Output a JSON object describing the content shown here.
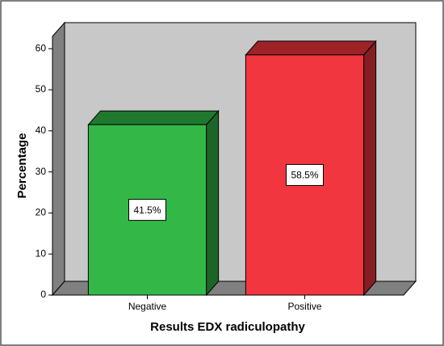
{
  "chart_data": {
    "type": "bar3d",
    "x_label": "Results EDX radiculopathy",
    "y_label": "Percentage",
    "categories": [
      "Negative",
      "Positive"
    ],
    "values": [
      41.5,
      58.5
    ],
    "value_labels": [
      "41.5%",
      "58.5%"
    ],
    "colors": [
      "#33b848",
      "#f2363f"
    ],
    "ylim": [
      0,
      63
    ],
    "yticks": [
      0,
      10,
      20,
      30,
      40,
      50,
      60
    ]
  }
}
